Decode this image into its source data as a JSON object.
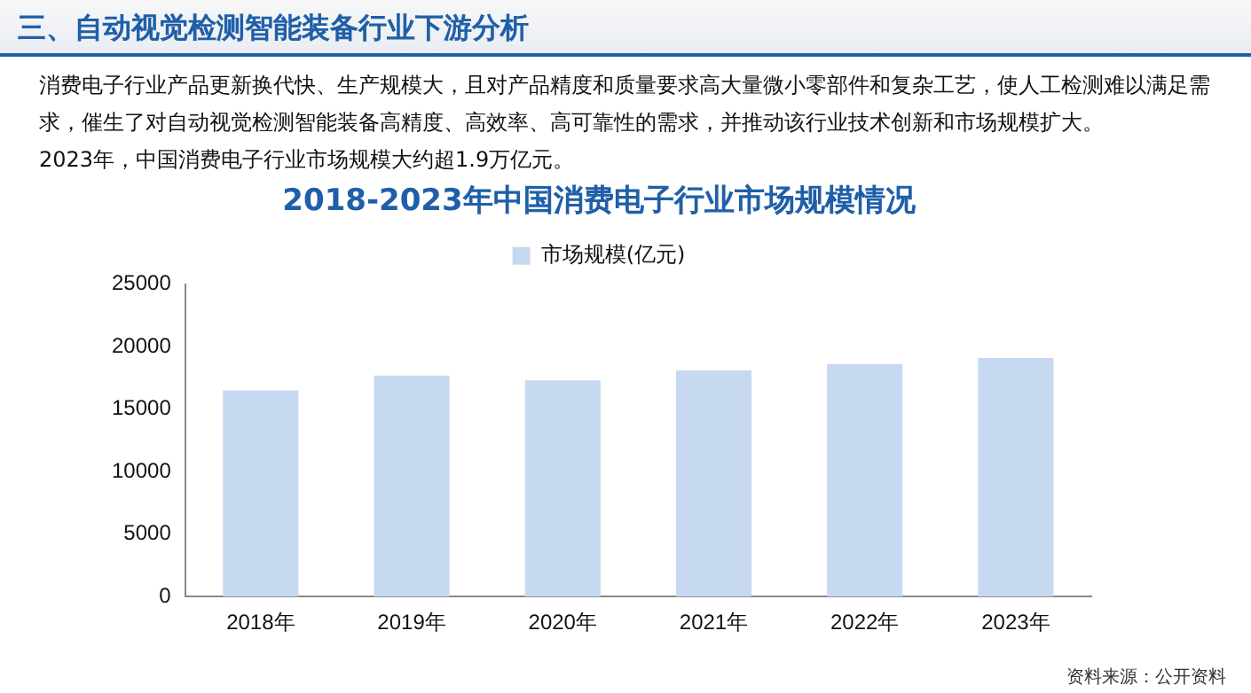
{
  "chart_data": {
    "type": "bar",
    "title": "2018-2023年中国消费电子行业市场规模情况",
    "annotations": [
      "三、自动视觉检测智能装备行业下游分析",
      "消费电子行业产品更新换代快、生产规模大，且对产品精度和质量要求高大量微小零部件和复杂工艺，使人工检测难以满足需求，催生了对自动视觉检测智能装备高精度、高效率、高可靠性的需求，并推动该行业技术创新和市场规模扩大。",
      "2023年，中国消费电子行业市场规模大约超1.9万亿元。",
      "资料来源：公开资料"
    ],
    "categories": [
      "2018年",
      "2019年",
      "2020年",
      "2021年",
      "2022年",
      "2023年"
    ],
    "series": [
      {
        "name": "市场规模(亿元)",
        "color": "#c6d9f1",
        "values": [
          16500,
          17700,
          17300,
          18100,
          18600,
          19100
        ]
      }
    ],
    "ylim": [
      0,
      25000
    ],
    "yticks": [
      0,
      5000,
      10000,
      15000,
      20000,
      25000
    ],
    "grid": false,
    "legend": "top"
  }
}
